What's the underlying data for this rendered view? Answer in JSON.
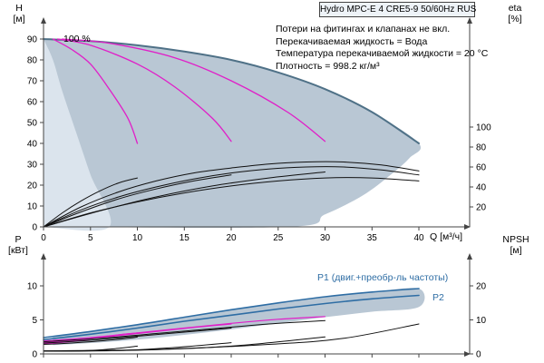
{
  "title_box": {
    "label": "Hydro MPC-E 4 CRE5-9 50/60Hz RUS"
  },
  "annotations": {
    "lines": [
      "Потери на фитингах и клапанах не вкл.",
      "Перекачиваемая жидкость = Вода",
      "Температура перекачиваемой жидкости = 20 °C",
      "Плотность = 998.2 кг/м³"
    ],
    "speed_label": "100 %",
    "p1_label": "P1 (двиг.+преобр-ль частоты)",
    "p2_label": "P2"
  },
  "axes_labels": {
    "h_top": "H",
    "h_unit": "[м]",
    "eta_top": "eta",
    "eta_unit": "[%]",
    "q_label": "Q [м³/ч]",
    "p_top": "P",
    "p_unit": "[кВт]",
    "npsh_top": "NPSH",
    "npsh_unit": "[м]"
  },
  "colors": {
    "envelope": "#b9c7d4",
    "envelope_light": "#dbe4ed",
    "maxCurve": "#4f7187",
    "magenta": "#e01fc8",
    "black": "#111111",
    "blue": "#2e6da4",
    "axis": "#444444"
  },
  "chart_data": [
    {
      "name": "head-capacity-chart",
      "type": "line",
      "title": "Hydro MPC-E 4 CRE5-9 50/60Hz RUS",
      "xlabel": "Q [м³/ч]",
      "ylabel": "H [м]",
      "y2label": "eta [%]",
      "xlim": [
        0,
        40
      ],
      "xticks": [
        0,
        5,
        10,
        15,
        20,
        25,
        30,
        35,
        40
      ],
      "xticks_labeled": true,
      "ylim": [
        0,
        90
      ],
      "yticks": [
        0,
        10,
        20,
        30,
        40,
        50,
        60,
        70,
        80,
        90
      ],
      "y2lim": [
        0,
        100
      ],
      "y2ticks": [
        20,
        40,
        60,
        80,
        100
      ],
      "legend": "none",
      "grid": false,
      "envelopes": [
        {
          "name": "operating-range",
          "axis": "y",
          "fill": "envelope",
          "points": [
            [
              0,
              0
            ],
            [
              26,
              0
            ],
            [
              30,
              6
            ],
            [
              34,
              15
            ],
            [
              37,
              25
            ],
            [
              39,
              33
            ],
            [
              40,
              40
            ],
            [
              35,
              55
            ],
            [
              30,
              66
            ],
            [
              25,
              74
            ],
            [
              20,
              80
            ],
            [
              15,
              84
            ],
            [
              10,
              87
            ],
            [
              5,
              89
            ],
            [
              0,
              90
            ]
          ]
        },
        {
          "name": "low-flow-range",
          "axis": "y",
          "fill": "envelope_light",
          "points": [
            [
              0,
              0
            ],
            [
              7,
              0
            ],
            [
              5,
              25
            ],
            [
              3.5,
              45
            ],
            [
              2,
              65
            ],
            [
              1,
              80
            ],
            [
              0,
              90
            ]
          ]
        }
      ],
      "series": [
        {
          "name": "qh-100pct",
          "axis": "y",
          "color": "maxCurve",
          "width": 2,
          "points": [
            [
              0,
              90
            ],
            [
              5,
              89
            ],
            [
              10,
              87
            ],
            [
              15,
              84
            ],
            [
              20,
              80
            ],
            [
              25,
              74
            ],
            [
              30,
              66
            ],
            [
              35,
              55
            ],
            [
              40,
              40
            ]
          ]
        },
        {
          "name": "qh-speed-a",
          "axis": "y",
          "color": "magenta",
          "width": 1.3,
          "points": [
            [
              1,
              90
            ],
            [
              3,
              85
            ],
            [
              5,
              78
            ],
            [
              7,
              66
            ],
            [
              9,
              52
            ],
            [
              10,
              40
            ]
          ]
        },
        {
          "name": "qh-speed-b",
          "axis": "y",
          "color": "magenta",
          "width": 1.3,
          "points": [
            [
              1.5,
              90
            ],
            [
              5,
              87
            ],
            [
              10,
              78
            ],
            [
              14,
              67
            ],
            [
              18,
              52
            ],
            [
              20,
              41
            ]
          ]
        },
        {
          "name": "qh-speed-c",
          "axis": "y",
          "color": "magenta",
          "width": 1.3,
          "points": [
            [
              2,
              90
            ],
            [
              7,
              88
            ],
            [
              14,
              81
            ],
            [
              20,
              70
            ],
            [
              26,
              55
            ],
            [
              30,
              41
            ]
          ]
        },
        {
          "name": "eta-full-1",
          "axis": "y2",
          "color": "black",
          "width": 1,
          "points": [
            [
              0,
              0
            ],
            [
              4,
              20
            ],
            [
              8,
              35
            ],
            [
              12,
              46
            ],
            [
              16,
              54
            ],
            [
              20,
              59
            ],
            [
              24,
              63
            ],
            [
              28,
              65
            ],
            [
              32,
              65
            ],
            [
              36,
              62
            ],
            [
              40,
              56
            ]
          ]
        },
        {
          "name": "eta-full-2",
          "axis": "y2",
          "color": "black",
          "width": 1,
          "points": [
            [
              0,
              0
            ],
            [
              4,
              17
            ],
            [
              8,
              30
            ],
            [
              12,
              40
            ],
            [
              16,
              48
            ],
            [
              20,
              54
            ],
            [
              24,
              58
            ],
            [
              28,
              60
            ],
            [
              32,
              60
            ],
            [
              36,
              57
            ],
            [
              40,
              52
            ]
          ]
        },
        {
          "name": "eta-full-3",
          "axis": "y2",
          "color": "black",
          "width": 1,
          "points": [
            [
              0,
              0
            ],
            [
              5,
              14
            ],
            [
              10,
              25
            ],
            [
              15,
              34
            ],
            [
              20,
              41
            ],
            [
              25,
              46
            ],
            [
              30,
              49
            ],
            [
              35,
              49
            ],
            [
              40,
              46
            ]
          ]
        },
        {
          "name": "eta-speed-a",
          "axis": "y2",
          "color": "black",
          "width": 1,
          "points": [
            [
              0,
              0
            ],
            [
              2,
              14
            ],
            [
              4,
              26
            ],
            [
              6,
              36
            ],
            [
              8,
              44
            ],
            [
              10,
              49
            ]
          ]
        },
        {
          "name": "eta-speed-b",
          "axis": "y2",
          "color": "black",
          "width": 1,
          "points": [
            [
              0,
              0
            ],
            [
              4,
              15
            ],
            [
              8,
              28
            ],
            [
              12,
              38
            ],
            [
              16,
              46
            ],
            [
              20,
              52
            ]
          ]
        },
        {
          "name": "eta-speed-c",
          "axis": "y2",
          "color": "black",
          "width": 1,
          "points": [
            [
              0,
              0
            ],
            [
              6,
              16
            ],
            [
              12,
              30
            ],
            [
              18,
              41
            ],
            [
              24,
              49
            ],
            [
              30,
              55
            ]
          ]
        }
      ]
    },
    {
      "name": "power-npsh-chart",
      "type": "line",
      "xlabel": "",
      "ylabel": "P [кВт]",
      "y2label": "NPSH [м]",
      "xlim": [
        0,
        40
      ],
      "xticks": [
        0,
        5,
        10,
        15,
        20,
        25,
        30,
        35,
        40
      ],
      "xticks_labeled": false,
      "ylim": [
        0,
        10
      ],
      "yticks": [
        0,
        5,
        10
      ],
      "y2lim": [
        0,
        20
      ],
      "y2ticks": [
        0,
        10,
        20
      ],
      "legend": "inline",
      "grid": false,
      "envelopes": [
        {
          "name": "power-range",
          "axis": "y",
          "fill": "envelope",
          "points": [
            [
              1,
              1.3
            ],
            [
              5,
              1.6
            ],
            [
              10,
              2.1
            ],
            [
              15,
              2.8
            ],
            [
              20,
              3.6
            ],
            [
              25,
              4.5
            ],
            [
              30,
              5.4
            ],
            [
              35,
              6.2
            ],
            [
              40,
              6.9
            ],
            [
              40,
              9.6
            ],
            [
              35,
              9.1
            ],
            [
              30,
              8.4
            ],
            [
              25,
              7.5
            ],
            [
              20,
              6.5
            ],
            [
              15,
              5.4
            ],
            [
              10,
              4.3
            ],
            [
              5,
              3.3
            ],
            [
              1,
              2.5
            ]
          ]
        }
      ],
      "series": [
        {
          "name": "p1-power",
          "axis": "y",
          "color": "blue",
          "width": 1.6,
          "points": [
            [
              0,
              2.4
            ],
            [
              5,
              3.3
            ],
            [
              10,
              4.3
            ],
            [
              15,
              5.4
            ],
            [
              20,
              6.5
            ],
            [
              25,
              7.5
            ],
            [
              30,
              8.4
            ],
            [
              35,
              9.1
            ],
            [
              40,
              9.6
            ]
          ]
        },
        {
          "name": "p2-power",
          "axis": "y",
          "color": "blue",
          "width": 1.6,
          "points": [
            [
              0,
              2.1
            ],
            [
              5,
              2.9
            ],
            [
              10,
              3.8
            ],
            [
              15,
              4.8
            ],
            [
              20,
              5.7
            ],
            [
              25,
              6.6
            ],
            [
              30,
              7.4
            ],
            [
              35,
              8.1
            ],
            [
              40,
              8.6
            ]
          ]
        },
        {
          "name": "power-speed-a",
          "axis": "y",
          "color": "magenta",
          "width": 1.2,
          "points": [
            [
              0,
              1.5
            ],
            [
              2,
              1.7
            ],
            [
              4,
              2.0
            ],
            [
              6,
              2.4
            ],
            [
              8,
              2.8
            ],
            [
              10,
              3.1
            ]
          ]
        },
        {
          "name": "power-speed-b",
          "axis": "y",
          "color": "magenta",
          "width": 1.2,
          "points": [
            [
              0,
              1.7
            ],
            [
              4,
              2.1
            ],
            [
              8,
              2.7
            ],
            [
              12,
              3.3
            ],
            [
              16,
              3.9
            ],
            [
              20,
              4.4
            ]
          ]
        },
        {
          "name": "power-speed-c",
          "axis": "y",
          "color": "magenta",
          "width": 1.2,
          "points": [
            [
              0,
              1.9
            ],
            [
              5,
              2.4
            ],
            [
              10,
              3.1
            ],
            [
              15,
              3.8
            ],
            [
              20,
              4.5
            ],
            [
              25,
              5.1
            ],
            [
              30,
              5.5
            ]
          ]
        },
        {
          "name": "power-black-a",
          "axis": "y",
          "color": "black",
          "width": 1,
          "points": [
            [
              0,
              1.4
            ],
            [
              3,
              1.6
            ],
            [
              6,
              1.9
            ],
            [
              9,
              2.3
            ],
            [
              10,
              2.5
            ]
          ]
        },
        {
          "name": "power-black-b",
          "axis": "y",
          "color": "black",
          "width": 1,
          "points": [
            [
              0,
              1.6
            ],
            [
              5,
              2.0
            ],
            [
              10,
              2.6
            ],
            [
              15,
              3.2
            ],
            [
              20,
              3.8
            ]
          ]
        },
        {
          "name": "power-black-c",
          "axis": "y",
          "color": "black",
          "width": 1,
          "points": [
            [
              0,
              1.8
            ],
            [
              6,
              2.3
            ],
            [
              12,
              3.0
            ],
            [
              18,
              3.7
            ],
            [
              24,
              4.4
            ],
            [
              30,
              4.9
            ]
          ]
        },
        {
          "name": "npsh-a",
          "axis": "y2",
          "color": "black",
          "width": 1,
          "points": [
            [
              0,
              0.8
            ],
            [
              4,
              0.9
            ],
            [
              7,
              1.4
            ],
            [
              10,
              2.3
            ]
          ]
        },
        {
          "name": "npsh-b",
          "axis": "y2",
          "color": "black",
          "width": 1,
          "points": [
            [
              0,
              0.8
            ],
            [
              8,
              1.0
            ],
            [
              14,
              1.9
            ],
            [
              20,
              3.3
            ]
          ]
        },
        {
          "name": "npsh-c",
          "axis": "y2",
          "color": "black",
          "width": 1,
          "points": [
            [
              0,
              0.9
            ],
            [
              10,
              1.1
            ],
            [
              20,
              2.3
            ],
            [
              30,
              5.0
            ]
          ]
        },
        {
          "name": "npsh-d",
          "axis": "y2",
          "color": "black",
          "width": 1,
          "points": [
            [
              0,
              0.9
            ],
            [
              12,
              1.3
            ],
            [
              24,
              2.8
            ],
            [
              32,
              4.6
            ],
            [
              40,
              8.8
            ]
          ]
        }
      ]
    }
  ]
}
